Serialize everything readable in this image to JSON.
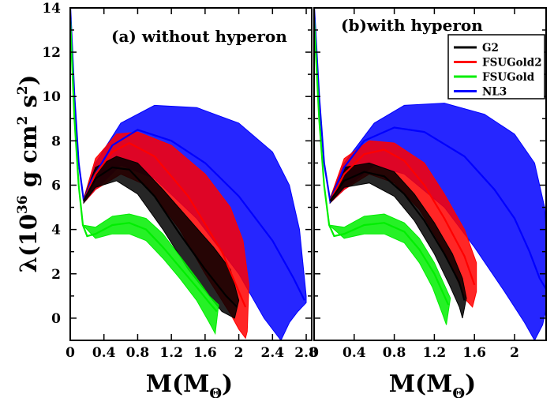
{
  "figure": {
    "ylabel": {
      "lambda": "λ(10",
      "exp36": "36",
      "g": " g cm",
      "exp2a": "2",
      "s": " s",
      "exp2b": "2",
      "close": ")"
    },
    "xlabel": {
      "M": "M(M",
      "sub": "Θ",
      "close": ")"
    }
  },
  "chart_data": [
    {
      "type": "area",
      "panel": "a",
      "title": "(a) without hyperon",
      "xlim": [
        0,
        2.8
      ],
      "ylim": [
        -1,
        14
      ],
      "x_ticks": [
        "0",
        "0.4",
        "0.8",
        "1.2",
        "1.6",
        "2",
        "2.4",
        "2.8"
      ],
      "y_ticks": [
        "0",
        "2",
        "4",
        "6",
        "8",
        "10",
        "12",
        "14"
      ],
      "series": [
        {
          "name": "NL3",
          "color": "#0000ff",
          "center": [
            [
              0.0,
              14
            ],
            [
              0.05,
              10
            ],
            [
              0.1,
              7
            ],
            [
              0.16,
              5.3
            ],
            [
              0.25,
              6.2
            ],
            [
              0.5,
              7.8
            ],
            [
              0.8,
              8.5
            ],
            [
              1.2,
              8.0
            ],
            [
              1.6,
              7.0
            ],
            [
              2.0,
              5.5
            ],
            [
              2.4,
              3.5
            ],
            [
              2.65,
              1.8
            ],
            [
              2.78,
              0.8
            ]
          ],
          "upper": [
            [
              0.16,
              5.4
            ],
            [
              0.3,
              7.0
            ],
            [
              0.6,
              8.8
            ],
            [
              1.0,
              9.6
            ],
            [
              1.5,
              9.5
            ],
            [
              2.0,
              8.8
            ],
            [
              2.4,
              7.5
            ],
            [
              2.6,
              6.0
            ],
            [
              2.72,
              4.0
            ],
            [
              2.8,
              1.0
            ]
          ],
          "lower": [
            [
              0.16,
              5.2
            ],
            [
              0.3,
              5.8
            ],
            [
              0.6,
              6.9
            ],
            [
              1.0,
              6.3
            ],
            [
              1.5,
              4.5
            ],
            [
              2.0,
              2.0
            ],
            [
              2.3,
              0.0
            ],
            [
              2.5,
              -1.0
            ],
            [
              2.6,
              -0.2
            ],
            [
              2.7,
              0.3
            ],
            [
              2.8,
              0.7
            ]
          ]
        },
        {
          "name": "FSUGold2",
          "color": "#ff0000",
          "center": [
            [
              0.16,
              5.3
            ],
            [
              0.3,
              6.5
            ],
            [
              0.5,
              7.5
            ],
            [
              0.7,
              7.9
            ],
            [
              1.0,
              7.3
            ],
            [
              1.4,
              5.5
            ],
            [
              1.8,
              3.0
            ],
            [
              2.0,
              1.2
            ],
            [
              2.08,
              0.5
            ]
          ],
          "upper": [
            [
              0.16,
              5.4
            ],
            [
              0.3,
              7.2
            ],
            [
              0.55,
              8.3
            ],
            [
              0.8,
              8.4
            ],
            [
              1.2,
              7.8
            ],
            [
              1.6,
              6.5
            ],
            [
              1.9,
              5.0
            ],
            [
              2.05,
              3.5
            ],
            [
              2.12,
              1.5
            ]
          ],
          "lower": [
            [
              0.16,
              5.2
            ],
            [
              0.3,
              5.8
            ],
            [
              0.6,
              6.5
            ],
            [
              0.9,
              6.0
            ],
            [
              1.3,
              4.0
            ],
            [
              1.6,
              2.0
            ],
            [
              1.9,
              0.2
            ],
            [
              2.0,
              -0.5
            ],
            [
              2.08,
              -0.9
            ],
            [
              2.1,
              -0.6
            ]
          ]
        },
        {
          "name": "G2",
          "color": "#000000",
          "center": [
            [
              0.16,
              5.3
            ],
            [
              0.3,
              6.3
            ],
            [
              0.5,
              6.8
            ],
            [
              0.7,
              6.7
            ],
            [
              1.0,
              5.5
            ],
            [
              1.3,
              3.8
            ],
            [
              1.6,
              2.2
            ],
            [
              1.85,
              1.0
            ],
            [
              1.98,
              0.5
            ]
          ],
          "upper": [
            [
              0.16,
              5.4
            ],
            [
              0.3,
              6.8
            ],
            [
              0.55,
              7.3
            ],
            [
              0.8,
              7.0
            ],
            [
              1.1,
              5.8
            ],
            [
              1.4,
              4.5
            ],
            [
              1.7,
              3.2
            ],
            [
              1.9,
              2.2
            ],
            [
              2.0,
              0.8
            ]
          ],
          "lower": [
            [
              0.16,
              5.2
            ],
            [
              0.3,
              5.9
            ],
            [
              0.55,
              6.2
            ],
            [
              0.8,
              5.6
            ],
            [
              1.1,
              4.0
            ],
            [
              1.4,
              2.2
            ],
            [
              1.65,
              1.0
            ],
            [
              1.8,
              0.3
            ],
            [
              1.95,
              0.0
            ]
          ]
        },
        {
          "name": "FSUGold",
          "color": "#00ee00",
          "center": [
            [
              0.0,
              13.5
            ],
            [
              0.05,
              9.0
            ],
            [
              0.1,
              6.0
            ],
            [
              0.15,
              4.2
            ],
            [
              0.2,
              3.7
            ],
            [
              0.3,
              3.8
            ],
            [
              0.5,
              4.2
            ],
            [
              0.7,
              4.3
            ],
            [
              0.9,
              4.0
            ],
            [
              1.1,
              3.2
            ],
            [
              1.3,
              2.3
            ],
            [
              1.5,
              1.4
            ],
            [
              1.65,
              0.7
            ],
            [
              1.74,
              0.3
            ]
          ],
          "upper": [
            [
              0.15,
              4.2
            ],
            [
              0.3,
              4.1
            ],
            [
              0.5,
              4.6
            ],
            [
              0.7,
              4.7
            ],
            [
              0.9,
              4.5
            ],
            [
              1.1,
              3.8
            ],
            [
              1.3,
              2.8
            ],
            [
              1.5,
              1.8
            ],
            [
              1.65,
              1.0
            ],
            [
              1.76,
              0.6
            ]
          ],
          "lower": [
            [
              0.15,
              4.2
            ],
            [
              0.3,
              3.6
            ],
            [
              0.5,
              3.8
            ],
            [
              0.7,
              3.8
            ],
            [
              0.9,
              3.5
            ],
            [
              1.1,
              2.7
            ],
            [
              1.3,
              1.8
            ],
            [
              1.5,
              0.8
            ],
            [
              1.65,
              -0.2
            ],
            [
              1.72,
              -0.7
            ]
          ]
        }
      ]
    },
    {
      "type": "area",
      "panel": "b",
      "title": "(b)with hyperon",
      "xlim": [
        0,
        2.4
      ],
      "ylim": [
        -1,
        14
      ],
      "x_ticks": [
        "0",
        "0.4",
        "0.8",
        "1.2",
        "1.6",
        "2"
      ],
      "legend": {
        "position": "top-right",
        "entries": [
          "G2",
          "FSUGold2",
          "FSUGold",
          "NL3"
        ]
      },
      "series": [
        {
          "name": "NL3",
          "color": "#0000ff",
          "center": [
            [
              0.0,
              14
            ],
            [
              0.05,
              10
            ],
            [
              0.1,
              7
            ],
            [
              0.16,
              5.3
            ],
            [
              0.3,
              6.8
            ],
            [
              0.5,
              8.0
            ],
            [
              0.8,
              8.6
            ],
            [
              1.1,
              8.4
            ],
            [
              1.5,
              7.3
            ],
            [
              1.8,
              5.8
            ],
            [
              2.0,
              4.5
            ],
            [
              2.15,
              3.0
            ],
            [
              2.25,
              1.8
            ],
            [
              2.33,
              1.2
            ]
          ],
          "upper": [
            [
              0.16,
              5.4
            ],
            [
              0.3,
              7.0
            ],
            [
              0.6,
              8.8
            ],
            [
              0.9,
              9.6
            ],
            [
              1.3,
              9.7
            ],
            [
              1.7,
              9.2
            ],
            [
              2.0,
              8.3
            ],
            [
              2.2,
              7.0
            ],
            [
              2.3,
              5.0
            ],
            [
              2.35,
              1.5
            ]
          ],
          "lower": [
            [
              0.16,
              5.2
            ],
            [
              0.3,
              5.8
            ],
            [
              0.6,
              6.9
            ],
            [
              0.9,
              6.5
            ],
            [
              1.3,
              5.0
            ],
            [
              1.6,
              3.2
            ],
            [
              1.9,
              1.2
            ],
            [
              2.1,
              -0.2
            ],
            [
              2.2,
              -1.0
            ],
            [
              2.28,
              -0.3
            ],
            [
              2.32,
              0.5
            ],
            [
              2.35,
              1.0
            ]
          ]
        },
        {
          "name": "FSUGold2",
          "color": "#ff0000",
          "center": [
            [
              0.16,
              5.3
            ],
            [
              0.3,
              6.5
            ],
            [
              0.5,
              7.4
            ],
            [
              0.7,
              7.6
            ],
            [
              0.9,
              7.1
            ],
            [
              1.1,
              6.0
            ],
            [
              1.3,
              4.5
            ],
            [
              1.5,
              2.8
            ],
            [
              1.6,
              1.5
            ]
          ],
          "upper": [
            [
              0.16,
              5.4
            ],
            [
              0.3,
              7.2
            ],
            [
              0.55,
              8.0
            ],
            [
              0.8,
              7.9
            ],
            [
              1.1,
              7.0
            ],
            [
              1.3,
              5.6
            ],
            [
              1.5,
              4.0
            ],
            [
              1.62,
              2.5
            ],
            [
              1.62,
              1.2
            ]
          ],
          "lower": [
            [
              0.16,
              5.2
            ],
            [
              0.3,
              5.8
            ],
            [
              0.55,
              6.5
            ],
            [
              0.8,
              6.1
            ],
            [
              1.05,
              4.9
            ],
            [
              1.25,
              3.4
            ],
            [
              1.4,
              2.0
            ],
            [
              1.52,
              0.8
            ],
            [
              1.58,
              0.5
            ]
          ]
        },
        {
          "name": "G2",
          "color": "#000000",
          "center": [
            [
              0.16,
              5.3
            ],
            [
              0.3,
              6.2
            ],
            [
              0.5,
              6.6
            ],
            [
              0.7,
              6.4
            ],
            [
              0.9,
              5.6
            ],
            [
              1.1,
              4.4
            ],
            [
              1.3,
              2.9
            ],
            [
              1.45,
              1.6
            ],
            [
              1.5,
              0.8
            ]
          ],
          "upper": [
            [
              0.16,
              5.4
            ],
            [
              0.3,
              6.8
            ],
            [
              0.55,
              7.0
            ],
            [
              0.8,
              6.6
            ],
            [
              1.0,
              5.6
            ],
            [
              1.2,
              4.3
            ],
            [
              1.38,
              2.9
            ],
            [
              1.48,
              1.8
            ],
            [
              1.52,
              0.9
            ]
          ],
          "lower": [
            [
              0.16,
              5.2
            ],
            [
              0.3,
              5.9
            ],
            [
              0.55,
              6.1
            ],
            [
              0.8,
              5.5
            ],
            [
              1.0,
              4.4
            ],
            [
              1.2,
              2.9
            ],
            [
              1.35,
              1.5
            ],
            [
              1.45,
              0.5
            ],
            [
              1.48,
              0.0
            ]
          ]
        },
        {
          "name": "FSUGold",
          "color": "#00ee00",
          "center": [
            [
              0.0,
              13.5
            ],
            [
              0.05,
              9.0
            ],
            [
              0.1,
              6.0
            ],
            [
              0.15,
              4.2
            ],
            [
              0.2,
              3.7
            ],
            [
              0.3,
              3.8
            ],
            [
              0.5,
              4.2
            ],
            [
              0.7,
              4.3
            ],
            [
              0.9,
              3.9
            ],
            [
              1.05,
              3.1
            ],
            [
              1.2,
              2.0
            ],
            [
              1.3,
              1.0
            ],
            [
              1.34,
              0.6
            ]
          ],
          "upper": [
            [
              0.15,
              4.2
            ],
            [
              0.3,
              4.1
            ],
            [
              0.5,
              4.6
            ],
            [
              0.7,
              4.7
            ],
            [
              0.9,
              4.3
            ],
            [
              1.05,
              3.6
            ],
            [
              1.2,
              2.5
            ],
            [
              1.3,
              1.5
            ],
            [
              1.36,
              0.9
            ]
          ],
          "lower": [
            [
              0.15,
              4.2
            ],
            [
              0.3,
              3.6
            ],
            [
              0.5,
              3.8
            ],
            [
              0.7,
              3.8
            ],
            [
              0.9,
              3.4
            ],
            [
              1.05,
              2.5
            ],
            [
              1.18,
              1.4
            ],
            [
              1.28,
              0.2
            ],
            [
              1.32,
              -0.3
            ]
          ]
        }
      ]
    }
  ]
}
